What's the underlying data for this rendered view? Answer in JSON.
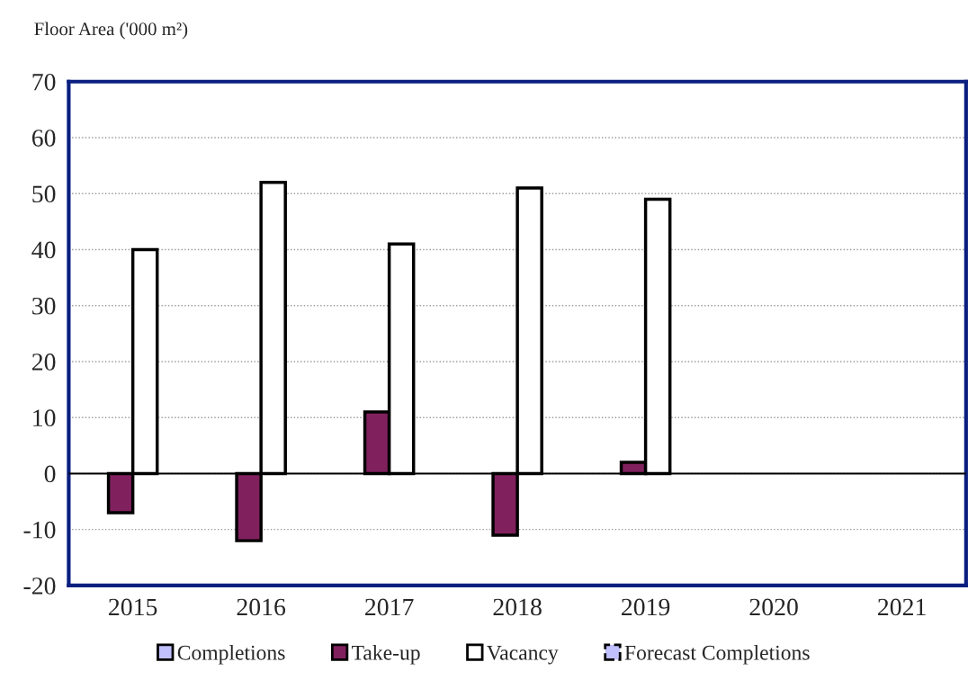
{
  "chart_data": {
    "type": "bar",
    "ylabel": "Floor Area ('000 m²)",
    "categories": [
      "2015",
      "2016",
      "2017",
      "2018",
      "2019",
      "2020",
      "2021"
    ],
    "series": [
      {
        "name": "Completions",
        "color": "#c0c0ff",
        "values": [
          null,
          null,
          null,
          null,
          null,
          null,
          null
        ]
      },
      {
        "name": "Take-up",
        "color": "#80215e",
        "values": [
          -7,
          -12,
          11,
          -11,
          2,
          null,
          null
        ]
      },
      {
        "name": "Vacancy",
        "color": "#ffffff",
        "values": [
          40,
          52,
          41,
          51,
          49,
          null,
          null
        ]
      },
      {
        "name": "Forecast Completions",
        "color": "#c0c0ff",
        "line_style": "dashed",
        "values": [
          null,
          null,
          null,
          null,
          null,
          null,
          null
        ]
      }
    ],
    "ylim": [
      -20,
      70
    ],
    "yticks": [
      -20,
      -10,
      0,
      10,
      20,
      30,
      40,
      50,
      60,
      70
    ],
    "grid": "y",
    "legend": "bottom"
  }
}
